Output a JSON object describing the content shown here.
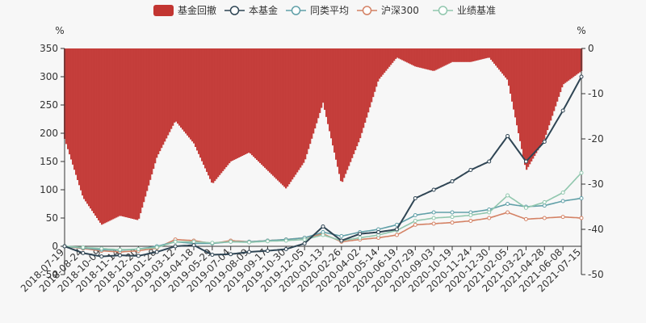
{
  "chart_data": {
    "type": "bar+line",
    "legend": [
      {
        "name": "基金回撤",
        "color": "#c23531",
        "kind": "bar"
      },
      {
        "name": "本基金",
        "color": "#2f4554",
        "kind": "line"
      },
      {
        "name": "同类平均",
        "color": "#61a0a8",
        "kind": "line"
      },
      {
        "name": "沪深300",
        "color": "#d48265",
        "kind": "line"
      },
      {
        "name": "业绩基准",
        "color": "#91c7ae",
        "kind": "line"
      }
    ],
    "y_left": {
      "unit": "%",
      "min": -50,
      "max": 350,
      "ticks": [
        -50,
        0,
        50,
        100,
        150,
        200,
        250,
        300,
        350
      ]
    },
    "y_right": {
      "unit": "%",
      "min": -50,
      "max": 0,
      "ticks": [
        -50,
        -40,
        -30,
        -20,
        -10,
        0
      ]
    },
    "x_labels": [
      "2018-07-19",
      "2018-08-24",
      "2018-10-09",
      "2018-11-14",
      "2018-12-20",
      "2019-01-28",
      "2019-03-12",
      "2019-04-18",
      "2019-05-29",
      "2019-07-04",
      "2019-08-09",
      "2019-09-17",
      "2019-10-30",
      "2019-12-05",
      "2020-01-13",
      "2020-02-26",
      "2020-04-02",
      "2020-05-14",
      "2020-06-19",
      "2020-07-29",
      "2020-09-03",
      "2020-10-19",
      "2020-11-24",
      "2020-12-30",
      "2021-02-05",
      "2021-03-22",
      "2021-04-28",
      "2021-06-08",
      "2021-07-15"
    ],
    "series": [
      {
        "name": "本基金",
        "values": [
          0,
          -12,
          -18,
          -16,
          -17,
          -10,
          0,
          2,
          -15,
          -14,
          -10,
          -8,
          -5,
          5,
          35,
          10,
          22,
          25,
          30,
          85,
          100,
          115,
          135,
          150,
          195,
          150,
          185,
          240,
          300
        ]
      },
      {
        "name": "同类平均",
        "values": [
          0,
          -3,
          -6,
          -7,
          -5,
          0,
          8,
          5,
          5,
          8,
          8,
          10,
          12,
          15,
          25,
          18,
          25,
          30,
          38,
          55,
          60,
          60,
          60,
          65,
          75,
          70,
          72,
          80,
          85
        ]
      },
      {
        "name": "沪深300",
        "values": [
          0,
          -4,
          -8,
          -10,
          -8,
          -3,
          12,
          10,
          5,
          10,
          8,
          10,
          12,
          15,
          22,
          8,
          12,
          15,
          20,
          38,
          40,
          42,
          45,
          50,
          60,
          48,
          50,
          52,
          50
        ]
      },
      {
        "name": "业绩基准",
        "values": [
          0,
          -2,
          -4,
          -6,
          -5,
          -2,
          8,
          8,
          6,
          8,
          7,
          9,
          10,
          12,
          20,
          10,
          15,
          20,
          28,
          45,
          50,
          52,
          55,
          60,
          90,
          68,
          78,
          95,
          130
        ]
      },
      {
        "name": "基金回撤",
        "values": [
          -20,
          -33,
          -39,
          -37,
          -38,
          -24,
          -16,
          -21,
          -30,
          -25,
          -23,
          -27,
          -31,
          -25,
          -12,
          -30,
          -20,
          -7,
          -2,
          -4,
          -5,
          -3,
          -3,
          -2,
          -7,
          -27,
          -20,
          -8,
          -5
        ]
      }
    ]
  }
}
